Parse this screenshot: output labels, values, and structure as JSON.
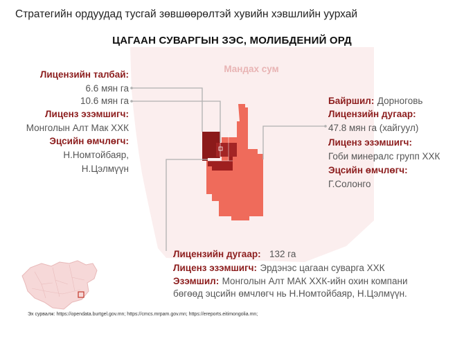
{
  "header": {
    "title": "Стратегийн ордуудад тусгай зөвшөөрөлтэй хувийн хэвшлийн уурхай",
    "subtitle": "ЦАГААН СУВАРГЫН ЗЭС, МОЛИБДЕНИЙ ОРД"
  },
  "map": {
    "region_label": "Мандах сум",
    "colors": {
      "background_region": "#fbeeee",
      "dark_parcel": "#8b1a1a",
      "light_parcel": "#ef6b5b",
      "leader_line": "#b0b0b0"
    }
  },
  "left_block": {
    "area_label": "Лицензийн талбай:",
    "area_value_1": "6.6 мян га",
    "area_value_2": "10.6 мян га",
    "holder_label": "Лиценз эзэмшигч:",
    "holder_value": "Монголын Алт Мак ХХК",
    "owner_label": "Эцсийн өмчлөгч:",
    "owner_value_1": "Н.Номтойбаяр,",
    "owner_value_2": "Н.Цэлмүүн"
  },
  "right_block": {
    "location_label": "Байршил:",
    "location_value": "Дорноговь",
    "license_label": "Лицензийн дугаар:",
    "license_value": "47.8 мян га (хайгуул)",
    "holder_label": "Лиценз эзэмшигч:",
    "holder_value": "Гоби минералс групп ХХК",
    "owner_label": "Эцсийн өмчлөгч:",
    "owner_value": "Г.Солонго"
  },
  "bottom_block": {
    "license_label": "Лицензийн дугаар:",
    "license_value": "132 га",
    "holder_label": "Лиценз эзэмшигч:",
    "holder_value": "Эрдэнэс цагаан суварга ХХК",
    "owner_label": "Эзэмшил:",
    "owner_value_1": "Монголын Алт МАК ХХК-ийн охин компани",
    "owner_value_2": "бөгөөд эцсийн өмчлөгч нь Н.Номтойбаяр, Н.Цэлмүүн."
  },
  "footer": {
    "source": "Эх сурвалж: https://opendata.burtgel.gov.mn; https://cmcs.mrpam.gov.mn; https://ereports.eitimongolia.mn;"
  }
}
